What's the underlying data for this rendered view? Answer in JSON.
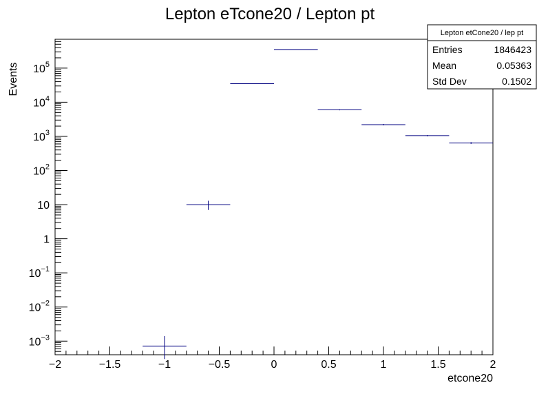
{
  "chart_data": {
    "type": "histogram",
    "title": "Lepton eTcone20 / Lepton pt",
    "xlabel": "etcone20",
    "ylabel": "Events",
    "xlim": [
      -2,
      2
    ],
    "ylim": [
      0.0004,
      700000
    ],
    "yscale": "log",
    "grid": false,
    "x_ticks": [
      {
        "value": -2,
        "label": "−2"
      },
      {
        "value": -1.5,
        "label": "−1.5"
      },
      {
        "value": -1,
        "label": "−1"
      },
      {
        "value": -0.5,
        "label": "−0.5"
      },
      {
        "value": 0,
        "label": "0"
      },
      {
        "value": 0.5,
        "label": "0.5"
      },
      {
        "value": 1,
        "label": "1"
      },
      {
        "value": 1.5,
        "label": "1.5"
      },
      {
        "value": 2,
        "label": "2"
      }
    ],
    "y_ticks": [
      {
        "value": 0.001,
        "base": "10",
        "exp": "−3"
      },
      {
        "value": 0.01,
        "base": "10",
        "exp": "−2"
      },
      {
        "value": 0.1,
        "base": "10",
        "exp": "−1"
      },
      {
        "value": 1,
        "base": "1",
        "exp": ""
      },
      {
        "value": 10,
        "base": "10",
        "exp": ""
      },
      {
        "value": 100,
        "base": "10",
        "exp": "2"
      },
      {
        "value": 1000,
        "base": "10",
        "exp": "3"
      },
      {
        "value": 10000,
        "base": "10",
        "exp": "4"
      },
      {
        "value": 100000,
        "base": "10",
        "exp": "5"
      }
    ],
    "bins": [
      {
        "x_low": -1.2,
        "x_high": -0.8,
        "value": 0.00072,
        "err_low": 0.0003,
        "err_high": 0.0014
      },
      {
        "x_low": -0.8,
        "x_high": -0.4,
        "value": 10,
        "err_low": 7,
        "err_high": 13
      },
      {
        "x_low": -0.4,
        "x_high": 0.0,
        "value": 35000,
        "err_low": 35000,
        "err_high": 35000
      },
      {
        "x_low": 0.0,
        "x_high": 0.4,
        "value": 350000,
        "err_low": 350000,
        "err_high": 350000
      },
      {
        "x_low": 0.4,
        "x_high": 0.8,
        "value": 6000,
        "err_low": 5800,
        "err_high": 6200
      },
      {
        "x_low": 0.8,
        "x_high": 1.2,
        "value": 2200,
        "err_low": 2100,
        "err_high": 2300
      },
      {
        "x_low": 1.2,
        "x_high": 1.6,
        "value": 1050,
        "err_low": 1000,
        "err_high": 1100
      },
      {
        "x_low": 1.6,
        "x_high": 2.0,
        "value": 640,
        "err_low": 600,
        "err_high": 680
      }
    ],
    "line_color": "#000080"
  },
  "stats_box": {
    "title": "Lepton etCone20 / lep pt",
    "rows": [
      {
        "label": "Entries",
        "value": "1846423"
      },
      {
        "label": "Mean",
        "value": "0.05363"
      },
      {
        "label": "Std Dev",
        "value": "0.1502"
      }
    ]
  }
}
